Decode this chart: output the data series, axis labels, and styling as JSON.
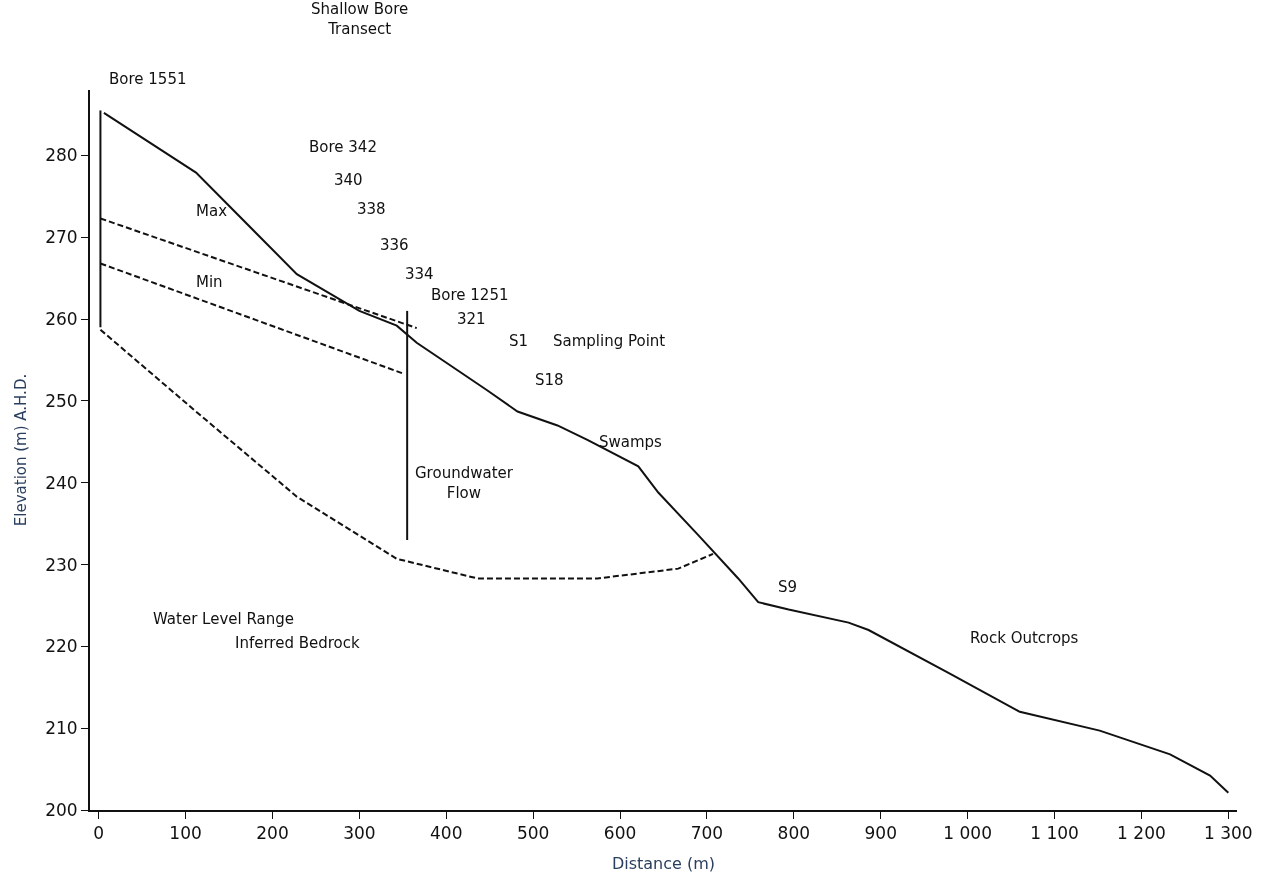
{
  "chart_data": {
    "type": "line",
    "xlabel": "Distance (m)",
    "ylabel": "Elevation (m) A.H.D.",
    "xlim": [
      -10,
      1310
    ],
    "ylim": [
      200,
      288
    ],
    "xticks": [
      0,
      100,
      200,
      300,
      400,
      500,
      600,
      700,
      800,
      900,
      {
        "value": 1000,
        "label": "1 000"
      },
      {
        "value": 1100,
        "label": "1 100"
      },
      {
        "value": 1200,
        "label": "1 200"
      },
      {
        "value": 1300,
        "label": "1 300"
      }
    ],
    "yticks": [
      200,
      210,
      220,
      230,
      240,
      250,
      260,
      270,
      280
    ],
    "marker": "none",
    "series": [
      {
        "color": "#111111",
        "line_style": "solid",
        "x": [
          6,
          112,
          228,
          300,
          343,
          366,
          401,
          447,
          482,
          528,
          563,
          621,
          644,
          690,
          736,
          759,
          794,
          863,
          886,
          979,
          1060,
          1152,
          1233,
          1279,
          1300
        ],
        "values": [
          285.2,
          277.9,
          265.5,
          261.0,
          259.2,
          257.1,
          254.6,
          251.3,
          248.7,
          247.0,
          245.2,
          242.0,
          238.8,
          233.6,
          228.3,
          225.4,
          224.5,
          222.9,
          222.0,
          216.7,
          212.0,
          209.7,
          206.8,
          204.2,
          202.1
        ]
      },
      {
        "color": "#111111",
        "line_style": "dashed",
        "x": [
          2,
          366
        ],
        "values": [
          272.3,
          258.9
        ]
      },
      {
        "color": "#111111",
        "line_style": "dashed",
        "x": [
          2,
          349
        ],
        "values": [
          266.8,
          253.4
        ]
      },
      {
        "color": "#111111",
        "line_style": "dashed",
        "x": [
          2,
          112,
          228,
          343,
          436,
          574,
          667,
          707
        ],
        "values": [
          258.7,
          248.7,
          238.3,
          230.7,
          228.3,
          228.3,
          229.5,
          231.3
        ]
      },
      {
        "color": "#111111",
        "line_style": "solid",
        "x": [
          2,
          2
        ],
        "values": [
          285.5,
          259.0
        ]
      },
      {
        "color": "#111111",
        "line_style": "solid",
        "x": [
          355,
          355
        ],
        "values": [
          261.0,
          233.0
        ]
      }
    ],
    "annotations": [
      "Bore 1551",
      "Shallow Bore\nTransect",
      "Bore 342",
      "340",
      "338",
      "336",
      "334",
      "Bore 1251",
      "321",
      "S1",
      "Sampling Point",
      "S18",
      "Swamps",
      "Groundwater\nFlow",
      "Max",
      "Min",
      "Water Level Range",
      "Inferred Bedrock",
      "S9",
      "Rock Outcrops"
    ]
  }
}
